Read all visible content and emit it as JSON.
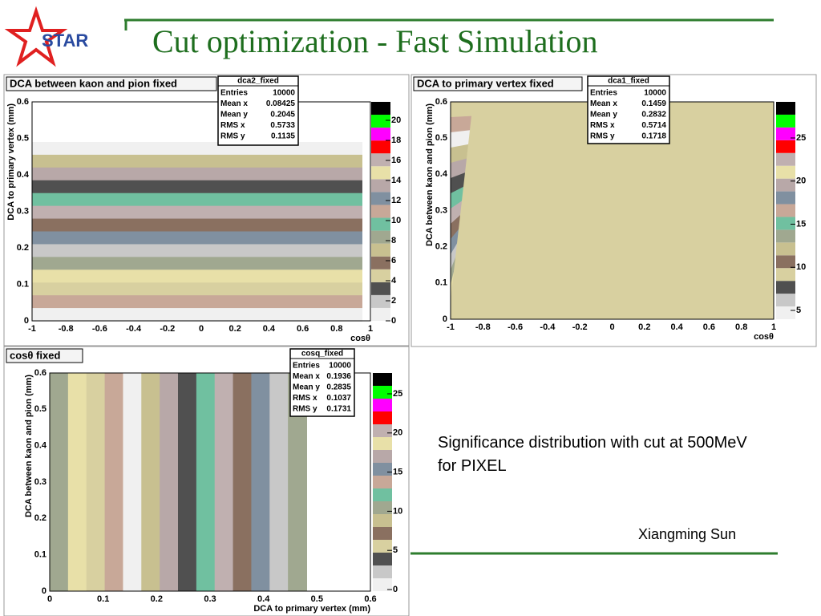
{
  "header": {
    "logo": "STAR",
    "title": "Cut optimization - Fast Simulation"
  },
  "panels": [
    {
      "title": "DCA between kaon and pion fixed",
      "stats": {
        "name": "dca2_fixed",
        "rows": [
          [
            "Entries",
            10000
          ],
          [
            "Mean x",
            0.08425
          ],
          [
            "Mean y",
            0.2045
          ],
          [
            "RMS x",
            0.5733
          ],
          [
            "RMS y",
            0.1135
          ]
        ]
      },
      "y_label": "DCA to primary vertex (mm)",
      "x_label": "cosθ",
      "x_ticks": [
        -1,
        -0.8,
        -0.6,
        -0.4,
        -0.2,
        0,
        0.2,
        0.4,
        0.6,
        0.8,
        1
      ],
      "y_ticks": [
        0,
        0.1,
        0.2,
        0.3,
        0.4,
        0.5,
        0.6
      ],
      "palette_ticks": [
        0,
        2,
        4,
        6,
        8,
        10,
        12,
        14,
        16,
        18,
        20
      ]
    },
    {
      "title": "DCA to primary vertex fixed",
      "stats": {
        "name": "dca1_fixed",
        "rows": [
          [
            "Entries",
            10000
          ],
          [
            "Mean x",
            0.1459
          ],
          [
            "Mean y",
            0.2832
          ],
          [
            "RMS x",
            0.5714
          ],
          [
            "RMS y",
            0.1718
          ]
        ]
      },
      "y_label": "DCA between kaon and pion (mm)",
      "x_label": "cosθ",
      "x_ticks": [
        -1,
        -0.8,
        -0.6,
        -0.4,
        -0.2,
        0,
        0.2,
        0.4,
        0.6,
        0.8,
        1
      ],
      "y_ticks": [
        0,
        0.1,
        0.2,
        0.3,
        0.4,
        0.5,
        0.6
      ],
      "palette_ticks": [
        5,
        10,
        15,
        20,
        25
      ]
    },
    {
      "title": "cosθ fixed",
      "stats": {
        "name": "cosq_fixed",
        "rows": [
          [
            "Entries",
            10000
          ],
          [
            "Mean x",
            0.1936
          ],
          [
            "Mean y",
            0.2835
          ],
          [
            "RMS x",
            0.1037
          ],
          [
            "RMS y",
            0.1731
          ]
        ]
      },
      "y_label": "DCA between kaon and pion (mm)",
      "x_label": "DCA to primary vertex (mm)",
      "x_ticks": [
        0,
        0.1,
        0.2,
        0.3,
        0.4,
        0.5,
        0.6
      ],
      "y_ticks": [
        0,
        0.1,
        0.2,
        0.3,
        0.4,
        0.5,
        0.6
      ],
      "palette_ticks": [
        0,
        5,
        10,
        15,
        20,
        25
      ]
    }
  ],
  "caption": "Significance distribution with cut at 500MeV for PIXEL",
  "author": "Xiangming Sun"
}
